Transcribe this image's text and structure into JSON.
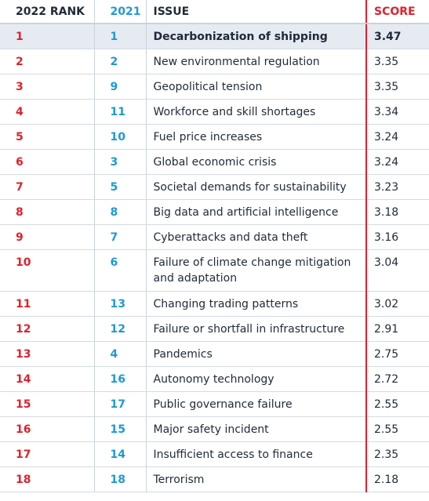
{
  "table": {
    "header": [
      "2022 RANK",
      "2021",
      "ISSUE",
      "SCORE"
    ],
    "rows": [
      [
        1,
        1,
        "Decarbonization of shipping",
        3.47
      ],
      [
        2,
        2,
        "New environmental regulation",
        3.35
      ],
      [
        3,
        9,
        "Geopolitical tension",
        3.35
      ],
      [
        4,
        11,
        "Workforce and skill shortages",
        3.34
      ],
      [
        5,
        10,
        "Fuel price increases",
        3.24
      ],
      [
        6,
        3,
        "Global economic crisis",
        3.24
      ],
      [
        7,
        5,
        "Societal demands for sustainability",
        3.23
      ],
      [
        8,
        8,
        "Big data and artificial intelligence",
        3.18
      ],
      [
        9,
        7,
        "Cyberattacks and data theft",
        3.16
      ],
      [
        10,
        6,
        "Failure of climate change mitigation and adaptation",
        3.04
      ],
      [
        11,
        13,
        "Changing trading patterns",
        3.02
      ],
      [
        12,
        12,
        "Failure or shortfall in infrastructure",
        2.91
      ],
      [
        13,
        4,
        "Pandemics",
        2.75
      ],
      [
        14,
        16,
        "Autonomy technology",
        2.72
      ],
      [
        15,
        17,
        "Public governance failure",
        2.55
      ],
      [
        16,
        15,
        "Major safety incident",
        2.55
      ],
      [
        17,
        14,
        "Insufficient access to finance",
        2.35
      ],
      [
        18,
        18,
        "Terrorism",
        2.18
      ]
    ]
  }
}
